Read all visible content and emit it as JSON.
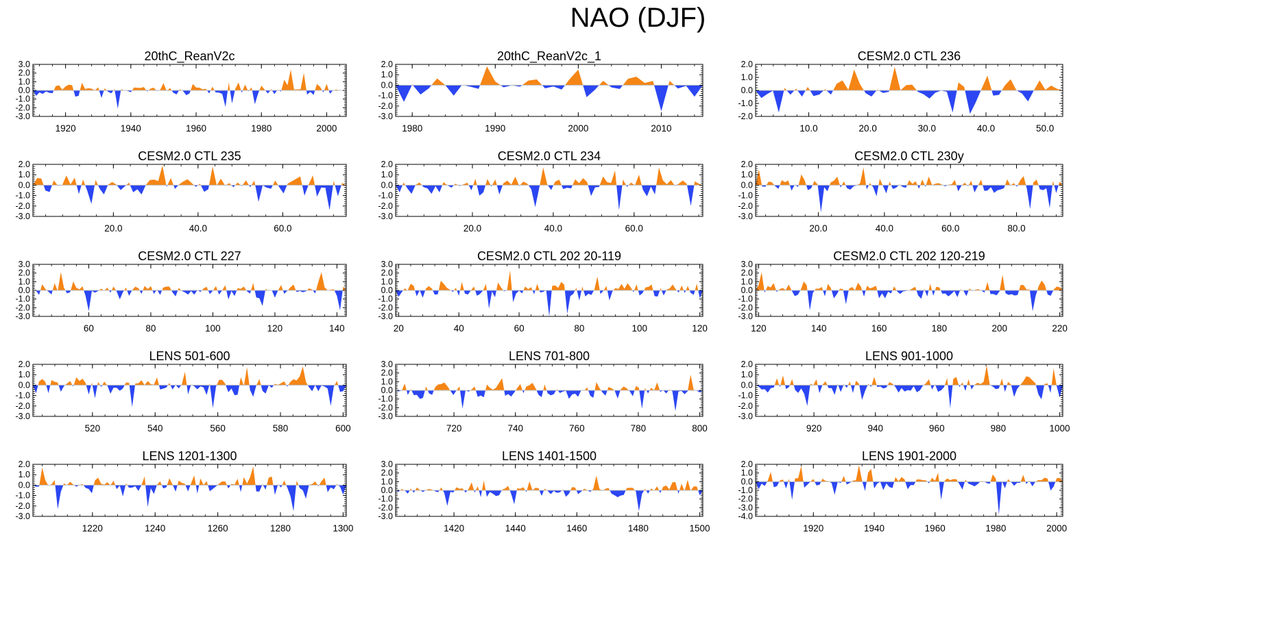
{
  "figure_title": "NAO (DJF)",
  "colors": {
    "positive": "#F58515",
    "negative": "#2B46F2",
    "axis": "#000000"
  },
  "chart_data": [
    {
      "type": "area",
      "title": "20thC_ReanV2c",
      "xlim": [
        1910,
        2006
      ],
      "xticks": [
        "1920",
        "1940",
        "1960",
        "1980",
        "2000"
      ],
      "xtick_values": [
        1920,
        1940,
        1960,
        1980,
        2000
      ],
      "ylim": [
        -3.0,
        3.0
      ],
      "yticks": [
        "3.0",
        "2.0",
        "1.0",
        "0.0",
        "-1.0",
        "-2.0",
        "-3.0"
      ],
      "series_spec": {
        "n": 95,
        "amp": 0.9,
        "seed": 11,
        "extremes": [
          [
            1989,
            2.4
          ],
          [
            1993,
            2.0
          ],
          [
            1969,
            -1.9
          ],
          [
            1936,
            -2.1
          ],
          [
            1978,
            -1.6
          ]
        ]
      }
    },
    {
      "type": "area",
      "title": "20thC_ReanV2c_1",
      "xlim": [
        1978,
        2015
      ],
      "xticks": [
        "1980",
        "1990",
        "2000",
        "2010"
      ],
      "xtick_values": [
        1980,
        1990,
        2000,
        2010
      ],
      "ylim": [
        -3.0,
        2.0
      ],
      "yticks": [
        "2.0",
        "1.0",
        "0.0",
        "-1.0",
        "-2.0",
        "-3.0"
      ],
      "series_spec": {
        "n": 36,
        "amp": 0.9,
        "seed": 21,
        "extremes": [
          [
            1989,
            1.8
          ],
          [
            2000,
            1.5
          ],
          [
            2010,
            -2.5
          ],
          [
            1979,
            -1.6
          ],
          [
            1985,
            -1.0
          ]
        ]
      }
    },
    {
      "type": "area",
      "title": "CESM2.0 CTL 236",
      "xlim": [
        1,
        53
      ],
      "xticks": [
        "10.0",
        "20.0",
        "30.0",
        "40.0",
        "50.0"
      ],
      "xtick_values": [
        10,
        20,
        30,
        40,
        50
      ],
      "ylim": [
        -2.0,
        2.0
      ],
      "yticks": [
        "2.0",
        "1.0",
        "0.0",
        "-1.0",
        "-2.0"
      ],
      "series_spec": {
        "n": 52,
        "amp": 0.8,
        "seed": 31,
        "extremes": [
          [
            25,
            1.8
          ],
          [
            18,
            1.6
          ],
          [
            34,
            -1.7
          ],
          [
            37,
            -1.8
          ],
          [
            5,
            -1.7
          ]
        ]
      }
    },
    {
      "type": "area",
      "title": "CESM2.0 CTL 235",
      "xlim": [
        1,
        75
      ],
      "xticks": [
        "20.0",
        "40.0",
        "60.0"
      ],
      "xtick_values": [
        20,
        40,
        60
      ],
      "ylim": [
        -3.0,
        2.0
      ],
      "yticks": [
        "2.0",
        "1.0",
        "0.0",
        "-1.0",
        "-2.0",
        "-3.0"
      ],
      "series_spec": {
        "n": 74,
        "amp": 0.9,
        "seed": 41,
        "extremes": [
          [
            43,
            1.8
          ],
          [
            32,
            1.9
          ],
          [
            71,
            -2.4
          ],
          [
            15,
            -1.8
          ],
          [
            54,
            -1.6
          ]
        ]
      }
    },
    {
      "type": "area",
      "title": "CESM2.0 CTL 234",
      "xlim": [
        1,
        77
      ],
      "xticks": [
        "20.0",
        "40.0",
        "60.0"
      ],
      "xtick_values": [
        20,
        40,
        60
      ],
      "ylim": [
        -3.0,
        2.0
      ],
      "yticks": [
        "2.0",
        "1.0",
        "0.0",
        "-1.0",
        "-2.0",
        "-3.0"
      ],
      "series_spec": {
        "n": 76,
        "amp": 0.9,
        "seed": 51,
        "extremes": [
          [
            38,
            1.7
          ],
          [
            66,
            1.7
          ],
          [
            74,
            -2.0
          ],
          [
            56,
            -2.4
          ],
          [
            36,
            -2.1
          ]
        ]
      }
    },
    {
      "type": "area",
      "title": "CESM2.0 CTL 230y",
      "xlim": [
        1,
        94
      ],
      "xticks": [
        "20.0",
        "40.0",
        "60.0",
        "80.0"
      ],
      "xtick_values": [
        20,
        40,
        60,
        80
      ],
      "ylim": [
        -3.0,
        2.0
      ],
      "yticks": [
        "2.0",
        "1.0",
        "0.0",
        "-1.0",
        "-2.0",
        "-3.0"
      ],
      "series_spec": {
        "n": 93,
        "amp": 0.9,
        "seed": 61,
        "extremes": [
          [
            34,
            1.7
          ],
          [
            2,
            1.5
          ],
          [
            21,
            -2.6
          ],
          [
            90,
            -2.2
          ],
          [
            84,
            -2.3
          ]
        ]
      }
    },
    {
      "type": "area",
      "title": "CESM2.0 CTL 227",
      "xlim": [
        42,
        143
      ],
      "xticks": [
        "60",
        "80",
        "100",
        "120",
        "140"
      ],
      "xtick_values": [
        60,
        80,
        100,
        120,
        140
      ],
      "ylim": [
        -3.0,
        3.0
      ],
      "yticks": [
        "3.0",
        "2.0",
        "1.0",
        "0.0",
        "-1.0",
        "-2.0",
        "-3.0"
      ],
      "series_spec": {
        "n": 100,
        "amp": 0.9,
        "seed": 71,
        "extremes": [
          [
            51,
            2.1
          ],
          [
            135,
            2.1
          ],
          [
            141,
            -2.3
          ],
          [
            60,
            -2.4
          ],
          [
            116,
            -1.8
          ]
        ]
      }
    },
    {
      "type": "area",
      "title": "CESM2.0 CTL 202 20-119",
      "xlim": [
        19,
        121
      ],
      "xticks": [
        "20",
        "40",
        "60",
        "80",
        "100",
        "120"
      ],
      "xtick_values": [
        20,
        40,
        60,
        80,
        100,
        120
      ],
      "ylim": [
        -3.0,
        3.0
      ],
      "yticks": [
        "3.0",
        "2.0",
        "1.0",
        "0.0",
        "-1.0",
        "-2.0",
        "-3.0"
      ],
      "series_spec": {
        "n": 101,
        "amp": 0.9,
        "seed": 81,
        "extremes": [
          [
            57,
            2.3
          ],
          [
            70,
            -3.0
          ],
          [
            76,
            -2.7
          ],
          [
            50,
            -2.1
          ],
          [
            86,
            1.6
          ]
        ]
      }
    },
    {
      "type": "area",
      "title": "CESM2.0 CTL 202 120-219",
      "xlim": [
        119,
        221
      ],
      "xticks": [
        "120",
        "140",
        "160",
        "180",
        "200",
        "220"
      ],
      "xtick_values": [
        120,
        140,
        160,
        180,
        200,
        220
      ],
      "ylim": [
        -3.0,
        3.0
      ],
      "yticks": [
        "3.0",
        "2.0",
        "1.0",
        "0.0",
        "-1.0",
        "-2.0",
        "-3.0"
      ],
      "series_spec": {
        "n": 101,
        "amp": 0.9,
        "seed": 91,
        "extremes": [
          [
            121,
            2.1
          ],
          [
            211,
            -2.4
          ],
          [
            137,
            -2.3
          ],
          [
            149,
            -1.6
          ],
          [
            201,
            1.8
          ]
        ]
      }
    },
    {
      "type": "area",
      "title": "LENS 501-600",
      "xlim": [
        501,
        601
      ],
      "xticks": [
        "520",
        "540",
        "560",
        "580",
        "600"
      ],
      "xtick_values": [
        520,
        540,
        560,
        580,
        600
      ],
      "ylim": [
        -3.0,
        2.0
      ],
      "yticks": [
        "2.0",
        "1.0",
        "0.0",
        "-1.0",
        "-2.0",
        "-3.0"
      ],
      "series_spec": {
        "n": 100,
        "amp": 0.9,
        "seed": 101,
        "extremes": [
          [
            587,
            1.8
          ],
          [
            569,
            1.7
          ],
          [
            596,
            -2.0
          ],
          [
            533,
            -2.1
          ],
          [
            558,
            -2.2
          ]
        ]
      }
    },
    {
      "type": "area",
      "title": "LENS 701-800",
      "xlim": [
        701,
        801
      ],
      "xticks": [
        "720",
        "740",
        "760",
        "780",
        "800"
      ],
      "xtick_values": [
        720,
        740,
        760,
        780,
        800
      ],
      "ylim": [
        -3.0,
        3.0
      ],
      "yticks": [
        "3.0",
        "2.0",
        "1.0",
        "0.0",
        "-1.0",
        "-2.0",
        "-3.0"
      ],
      "series_spec": {
        "n": 100,
        "amp": 0.9,
        "seed": 111,
        "extremes": [
          [
            797,
            1.8
          ],
          [
            723,
            -2.1
          ],
          [
            792,
            -2.4
          ],
          [
            781,
            -2.1
          ],
          [
            736,
            1.4
          ]
        ]
      }
    },
    {
      "type": "area",
      "title": "LENS 901-1000",
      "xlim": [
        901,
        1001
      ],
      "xticks": [
        "920",
        "940",
        "960",
        "980",
        "1000"
      ],
      "xtick_values": [
        920,
        940,
        960,
        980,
        1000
      ],
      "ylim": [
        -3.0,
        2.0
      ],
      "yticks": [
        "2.0",
        "1.0",
        "0.0",
        "-1.0",
        "-2.0",
        "-3.0"
      ],
      "series_spec": {
        "n": 100,
        "amp": 0.9,
        "seed": 121,
        "extremes": [
          [
            976,
            1.9
          ],
          [
            998,
            1.6
          ],
          [
            964,
            -2.2
          ],
          [
            918,
            -2.0
          ],
          [
            1000,
            -1.2
          ]
        ]
      }
    },
    {
      "type": "area",
      "title": "LENS 1201-1300",
      "xlim": [
        1201,
        1301
      ],
      "xticks": [
        "1220",
        "1240",
        "1260",
        "1280",
        "1300"
      ],
      "xtick_values": [
        1220,
        1240,
        1260,
        1280,
        1300
      ],
      "ylim": [
        -3.0,
        2.0
      ],
      "yticks": [
        "2.0",
        "1.0",
        "0.0",
        "-1.0",
        "-2.0",
        "-3.0"
      ],
      "series_spec": {
        "n": 100,
        "amp": 0.9,
        "seed": 131,
        "extremes": [
          [
            1271,
            1.8
          ],
          [
            1238,
            -2.1
          ],
          [
            1284,
            -2.5
          ],
          [
            1209,
            -2.3
          ],
          [
            1204,
            1.7
          ]
        ]
      }
    },
    {
      "type": "area",
      "title": "LENS 1401-1500",
      "xlim": [
        1401,
        1501
      ],
      "xticks": [
        "1420",
        "1440",
        "1460",
        "1480",
        "1500"
      ],
      "xtick_values": [
        1420,
        1440,
        1460,
        1480,
        1500
      ],
      "ylim": [
        -3.0,
        3.0
      ],
      "yticks": [
        "3.0",
        "2.0",
        "1.0",
        "0.0",
        "-1.0",
        "-2.0",
        "-3.0"
      ],
      "series_spec": {
        "n": 100,
        "amp": 0.9,
        "seed": 141,
        "extremes": [
          [
            1466,
            1.7
          ],
          [
            1480,
            -2.4
          ],
          [
            1418,
            -1.8
          ],
          [
            1496,
            1.2
          ],
          [
            1440,
            -1.6
          ]
        ]
      }
    },
    {
      "type": "area",
      "title": "LENS 1901-2000",
      "xlim": [
        1901,
        2002
      ],
      "xticks": [
        "1920",
        "1940",
        "1960",
        "1980",
        "2000"
      ],
      "xtick_values": [
        1920,
        1940,
        1960,
        1980,
        2000
      ],
      "ylim": [
        -4.0,
        2.0
      ],
      "yticks": [
        "2.0",
        "1.0",
        "0.0",
        "-1.0",
        "-2.0",
        "-3.0",
        "-4.0"
      ],
      "series_spec": {
        "n": 100,
        "amp": 0.9,
        "seed": 151,
        "extremes": [
          [
            1981,
            -3.8
          ],
          [
            1935,
            1.9
          ],
          [
            1916,
            1.8
          ],
          [
            1913,
            -2.1
          ],
          [
            1962,
            -2.1
          ]
        ]
      }
    }
  ]
}
